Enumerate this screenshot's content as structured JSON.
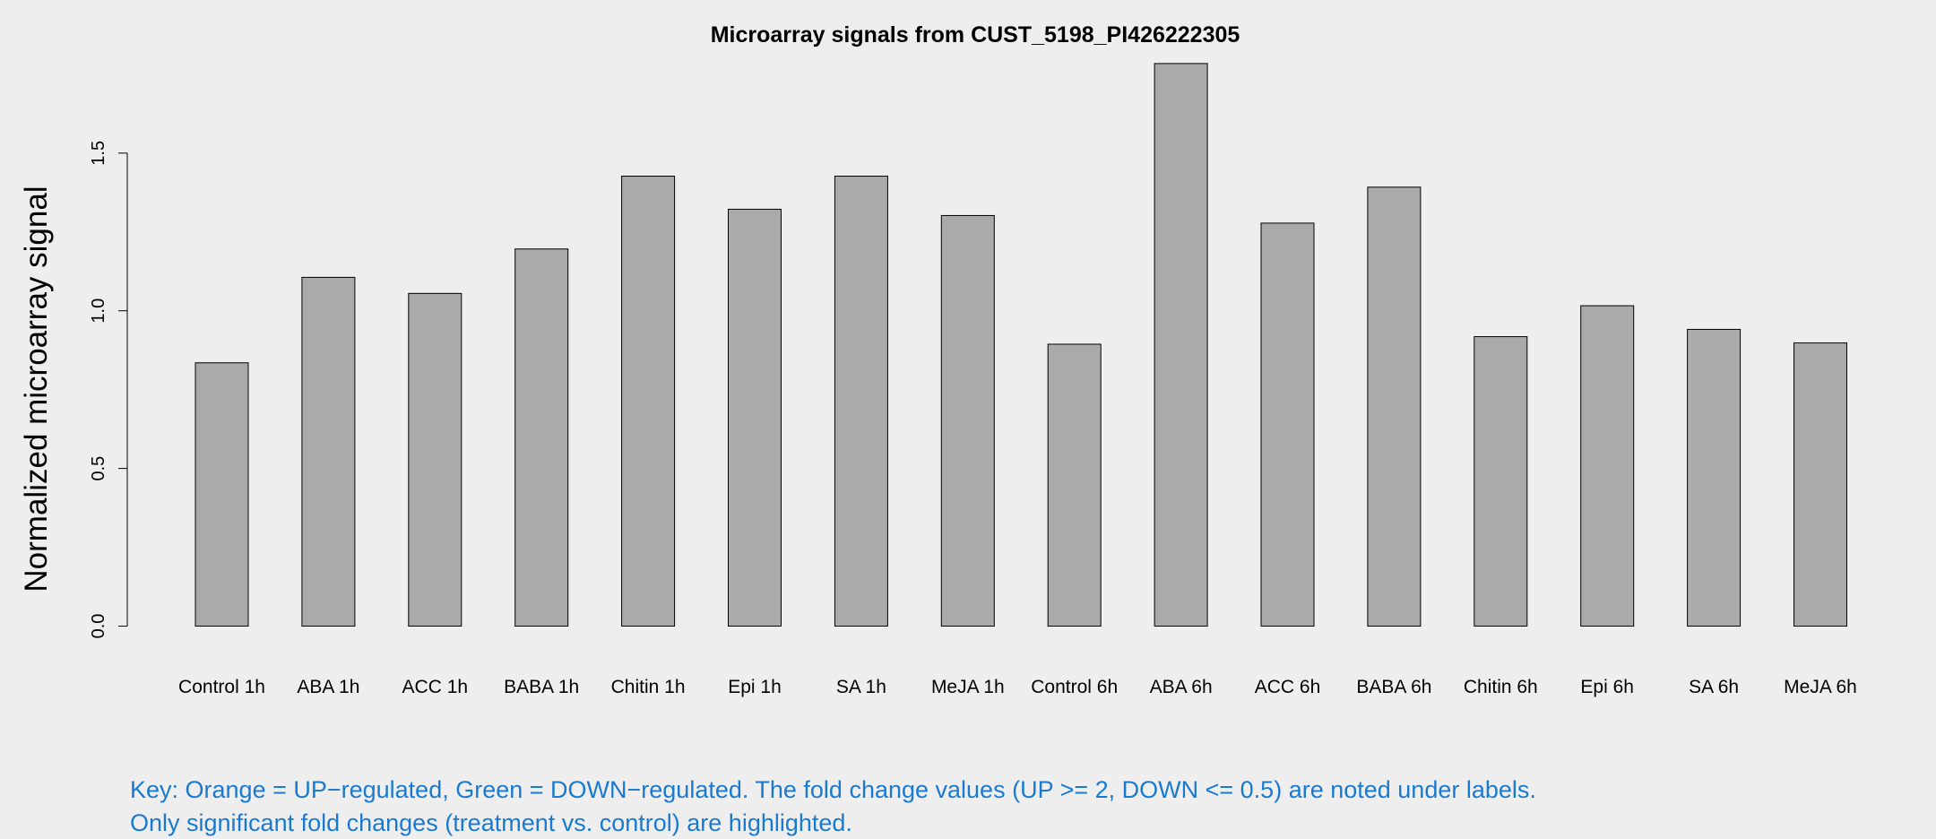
{
  "chart_data": {
    "type": "bar",
    "title": "Microarray signals from CUST_5198_PI426222305",
    "xlabel": "",
    "ylabel": "Normalized microarray signal",
    "ylim": [
      0,
      1.8
    ],
    "yticks": [
      0.0,
      0.5,
      1.0,
      1.5
    ],
    "ytick_labels": [
      "0.0",
      "0.5",
      "1.0",
      "1.5"
    ],
    "grid": false,
    "bar_color": "#aaaaaa",
    "categories": [
      "Control 1h",
      "ABA 1h",
      "ACC 1h",
      "BABA 1h",
      "Chitin 1h",
      "Epi 1h",
      "SA 1h",
      "MeJA 1h",
      "Control 6h",
      "ABA 6h",
      "ACC 6h",
      "BABA 6h",
      "Chitin 6h",
      "Epi 6h",
      "SA 6h",
      "MeJA 6h"
    ],
    "values": [
      0.835,
      1.106,
      1.055,
      1.196,
      1.427,
      1.322,
      1.427,
      1.302,
      0.894,
      1.784,
      1.278,
      1.392,
      0.918,
      1.016,
      0.941,
      0.898
    ]
  },
  "key": {
    "line1": "Key: Orange = UP−regulated, Green = DOWN−regulated. The fold change values (UP >= 2, DOWN <= 0.5) are noted under labels.",
    "line2": "Only significant fold changes (treatment vs. control) are highlighted.",
    "color": "#1a7ad0"
  }
}
